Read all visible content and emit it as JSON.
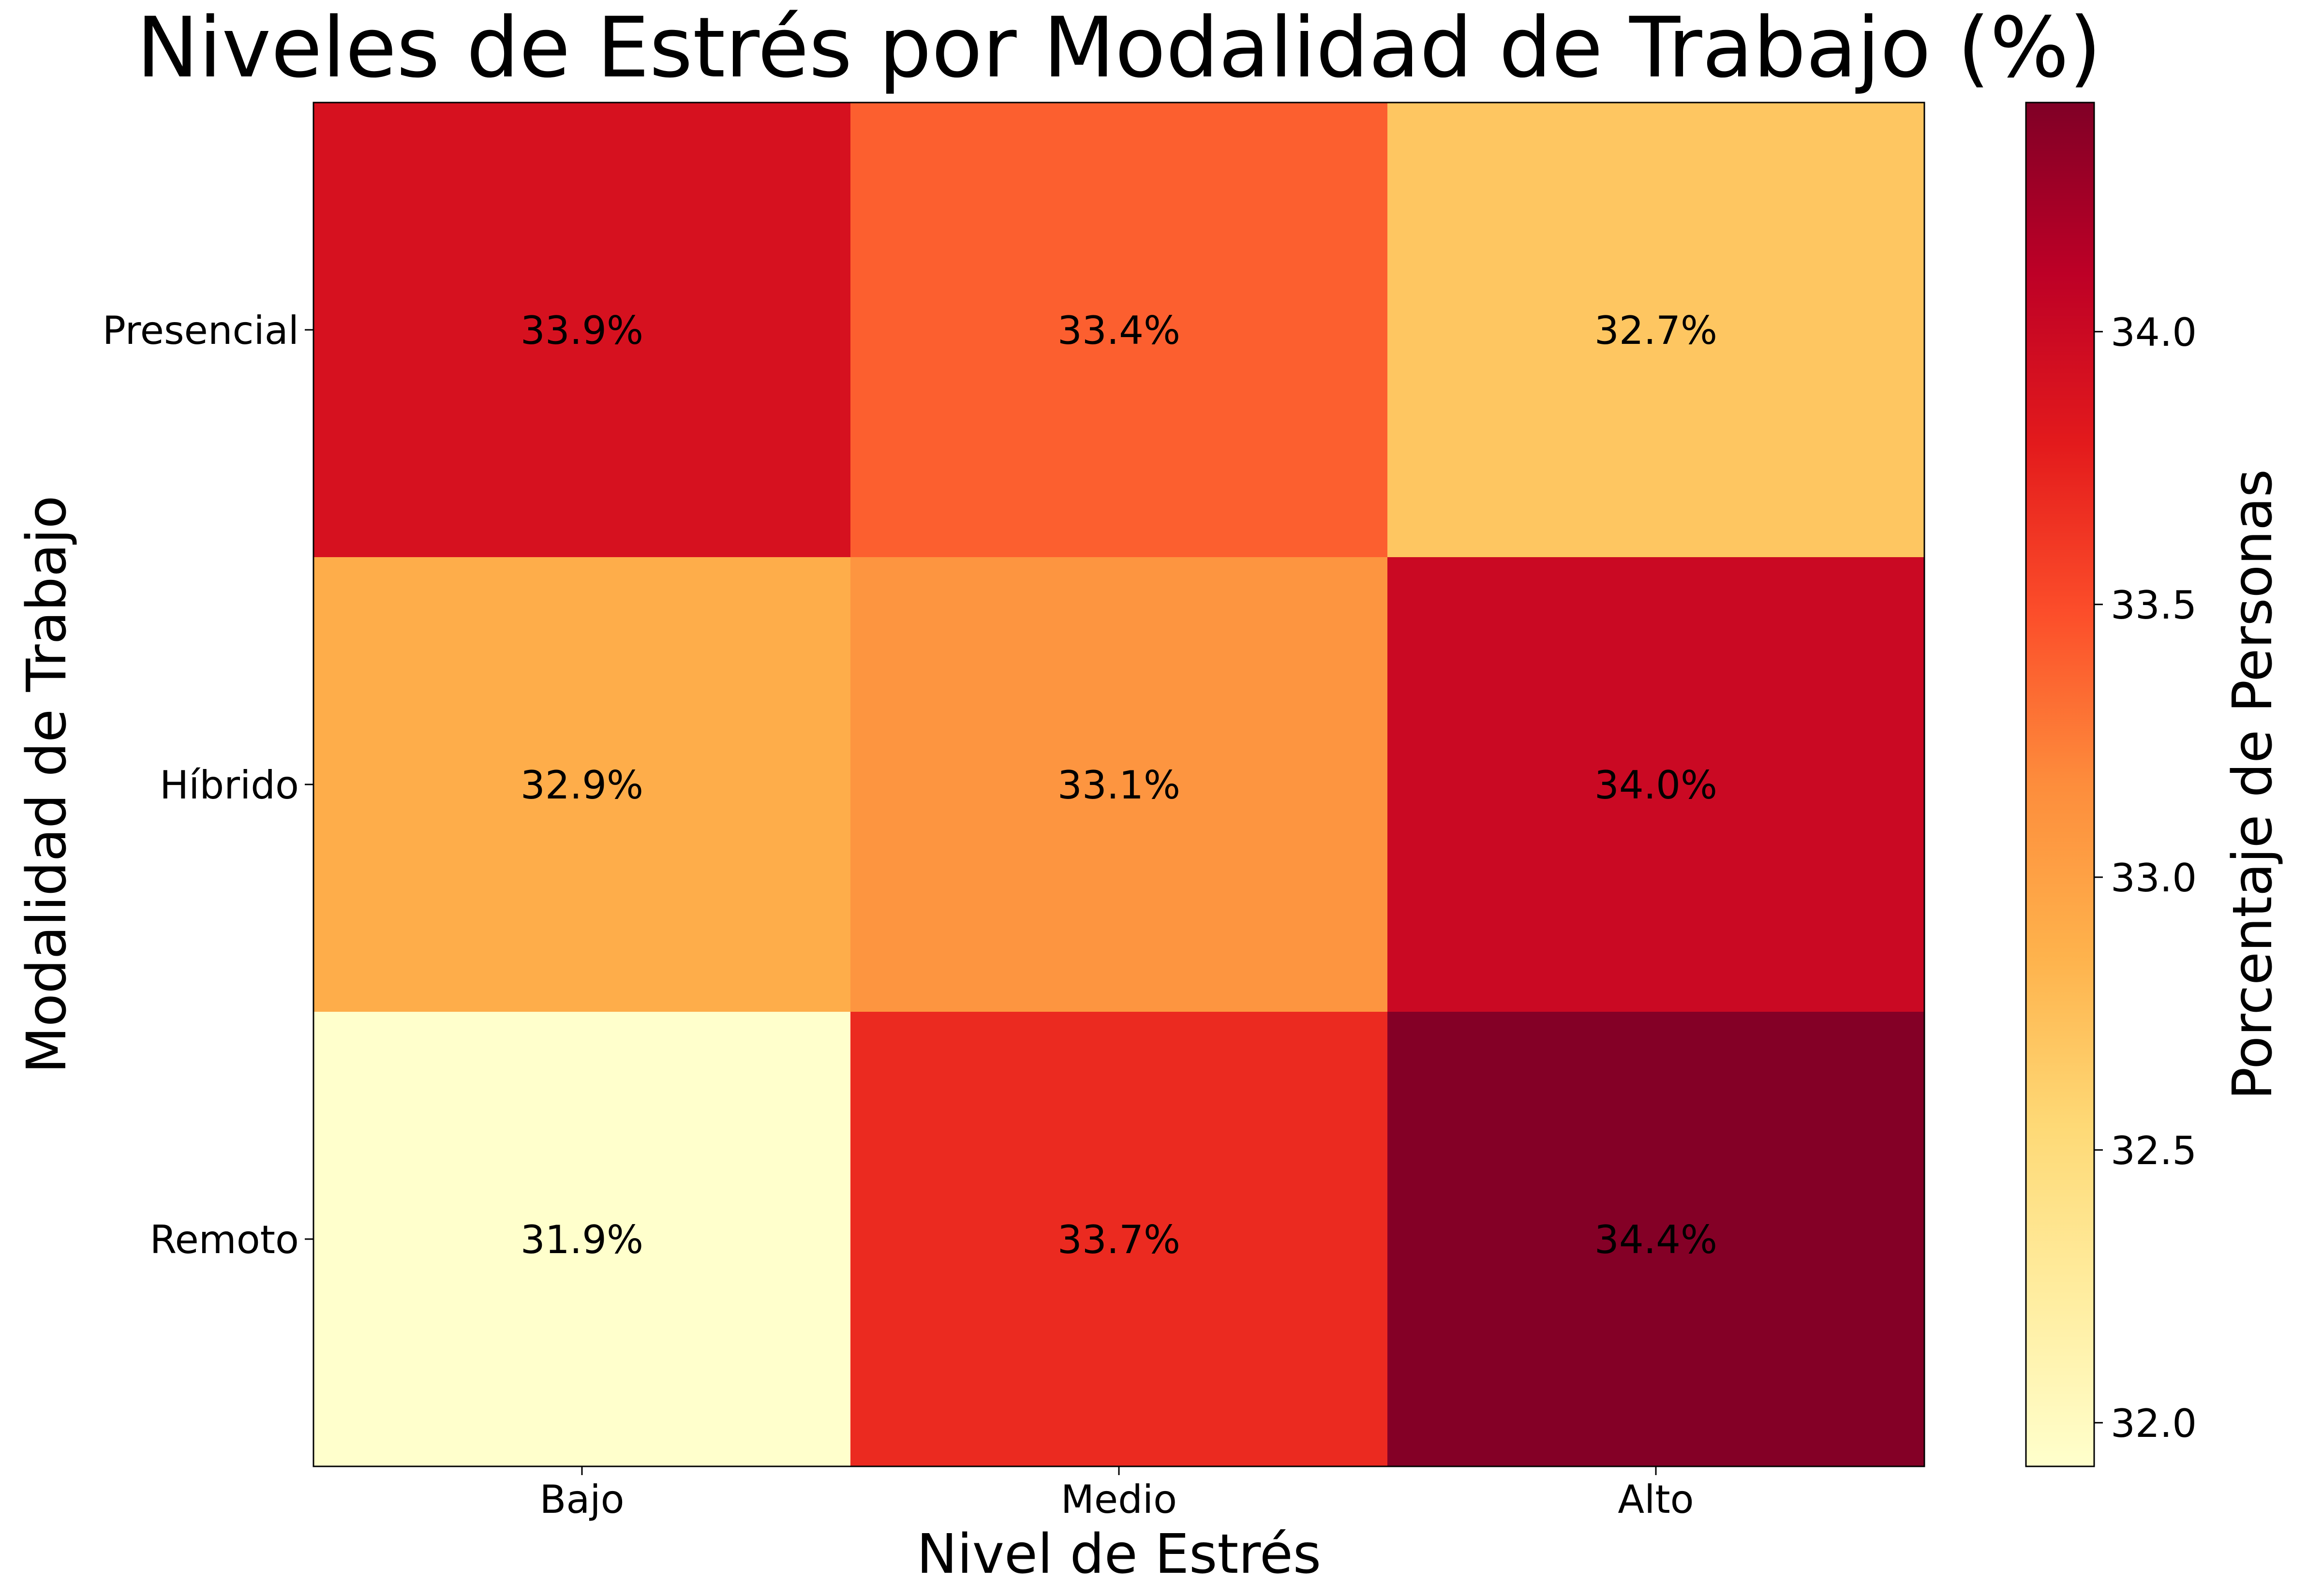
{
  "chart_data": {
    "type": "heatmap",
    "title": "Niveles de Estrés por Modalidad de Trabajo (%)",
    "xlabel": "Nivel de Estrés",
    "ylabel": "Modalidad de Trabajo",
    "x_categories": [
      "Bajo",
      "Medio",
      "Alto"
    ],
    "y_categories": [
      "Presencial",
      "Híbrido",
      "Remoto"
    ],
    "values": [
      [
        33.9,
        33.4,
        32.7
      ],
      [
        32.9,
        33.1,
        34.0
      ],
      [
        31.9,
        33.7,
        34.4
      ]
    ],
    "cell_labels": [
      [
        "33.9%",
        "33.4%",
        "32.7%"
      ],
      [
        "32.9%",
        "33.1%",
        "34.0%"
      ],
      [
        "31.9%",
        "33.7%",
        "34.4%"
      ]
    ],
    "colormap": "YlOrRd",
    "colorbar": {
      "label": "Porcentaje de Personas",
      "range": [
        31.92,
        34.42
      ],
      "ticks": [
        32.0,
        32.5,
        33.0,
        33.5,
        34.0
      ],
      "tick_labels": [
        "32.0",
        "32.5",
        "33.0",
        "33.5",
        "34.0"
      ]
    },
    "grid": false
  }
}
